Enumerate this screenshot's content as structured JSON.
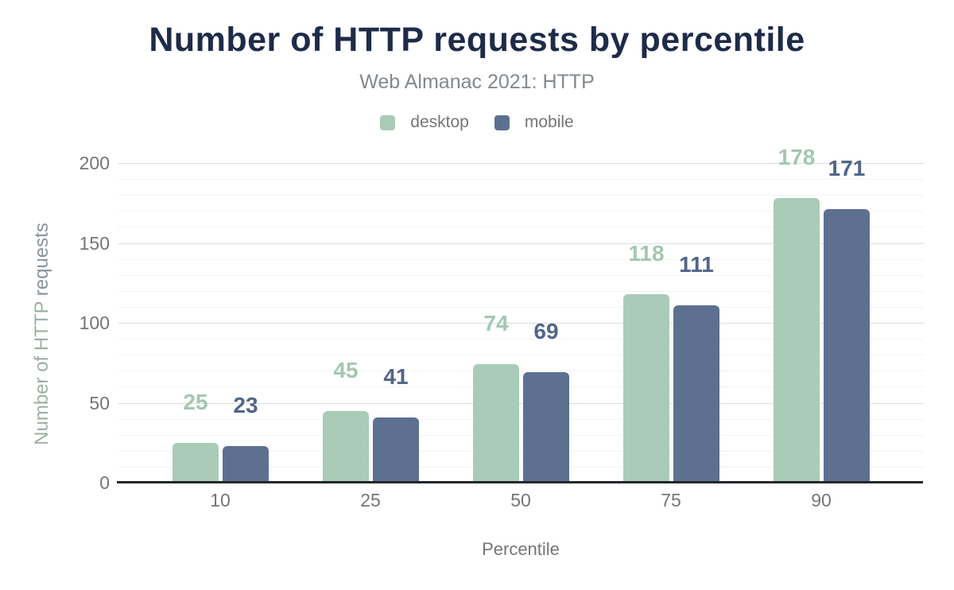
{
  "title": "Number of HTTP requests by percentile",
  "subtitle": "Web Almanac 2021: HTTP",
  "legend": [
    {
      "label": "desktop",
      "color": "#a9cbb7"
    },
    {
      "label": "mobile",
      "color": "#5d7090"
    }
  ],
  "y_axis_title_part1": "Number of HTTP ",
  "y_axis_title_part2": "requests",
  "colors": {
    "title": "#1e2b49",
    "subtitle": "#83898d",
    "tick_text": "#757575",
    "desktop_bar": "#a9cbb7",
    "mobile_bar": "#5d7090",
    "desktop_value_label": "#a3c7b2",
    "mobile_value_label": "#52658a",
    "ylabel_part1": "#9bb0a2",
    "ylabel_part2": "#8b9299",
    "gridline_minor": "#f2f3f4",
    "gridline_major": "#dcdee0",
    "axis_line": "#24272b"
  },
  "chart_data": {
    "type": "bar",
    "title": "Number of HTTP requests by percentile",
    "subtitle": "Web Almanac 2021: HTTP",
    "categories": [
      "10",
      "25",
      "50",
      "75",
      "90"
    ],
    "series": [
      {
        "name": "desktop",
        "color": "#a9cbb7",
        "label_color": "#a3c7b2",
        "values": [
          25,
          45,
          74,
          118,
          178
        ]
      },
      {
        "name": "mobile",
        "color": "#5d7090",
        "label_color": "#52658a",
        "values": [
          23,
          41,
          69,
          111,
          171
        ]
      }
    ],
    "xlabel": "Percentile",
    "ylabel": "Number of HTTP requests",
    "y_ticks": [
      0,
      50,
      100,
      150,
      200
    ],
    "ylim": [
      0,
      200
    ],
    "minor_grid_step": 10,
    "major_grid_step": 50,
    "grid": "horizontal",
    "legend_position": "top",
    "value_labels": "above bars"
  }
}
